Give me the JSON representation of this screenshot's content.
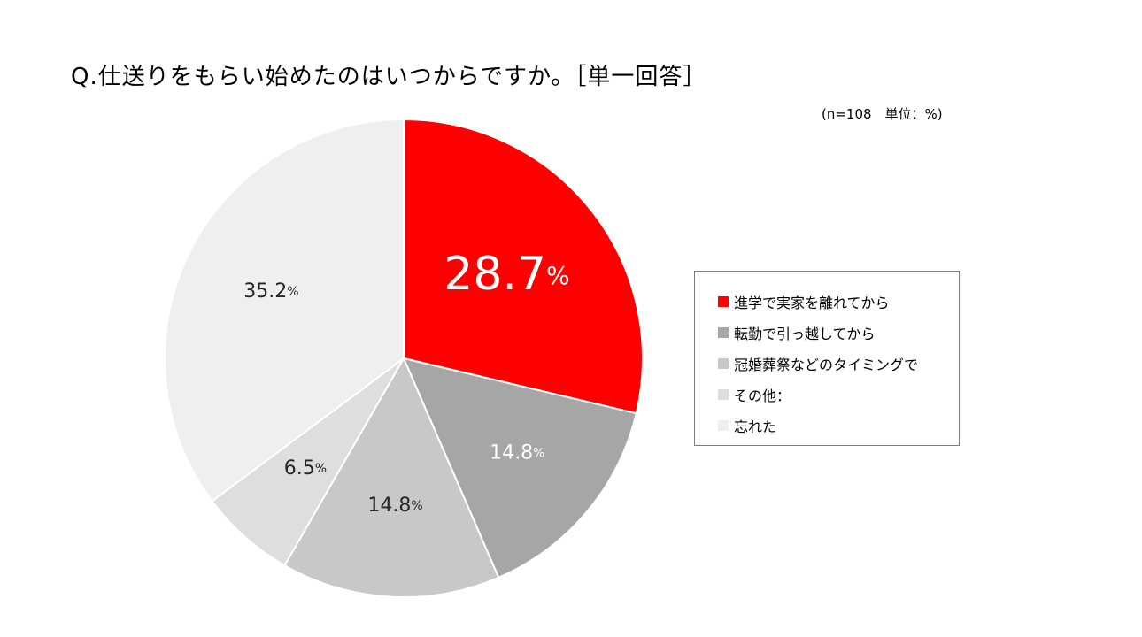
{
  "header": {
    "title": "Q.仕送りをもらい始めたのはいつからですか。［単一回答］",
    "note": "(n=108　単位：%)"
  },
  "chart_data": {
    "type": "pie",
    "unit": "%",
    "start_angle": "12 o'clock",
    "direction": "clockwise",
    "slices": [
      {
        "label": "進学で実家を離れてから",
        "value": 28.7,
        "color": "#ff0000",
        "display": "28.7",
        "label_color": "#ffffff",
        "emphasis": true
      },
      {
        "label": "転勤で引っ越してから",
        "value": 14.8,
        "color": "#a6a6a6",
        "display": "14.8",
        "label_color": "#ffffff",
        "emphasis": false
      },
      {
        "label": "冠婚葬祭などのタイミングで",
        "value": 14.8,
        "color": "#c8c8c8",
        "display": "14.8",
        "label_color": "#262626",
        "emphasis": false
      },
      {
        "label": "その他：",
        "value": 6.5,
        "color": "#dedede",
        "display": "6.5",
        "label_color": "#262626",
        "emphasis": false
      },
      {
        "label": "忘れた",
        "value": 35.2,
        "color": "#efefef",
        "display": "35.2",
        "label_color": "#262626",
        "emphasis": false
      }
    ],
    "percent_suffix": "%",
    "legend": {
      "placement": "right"
    }
  }
}
